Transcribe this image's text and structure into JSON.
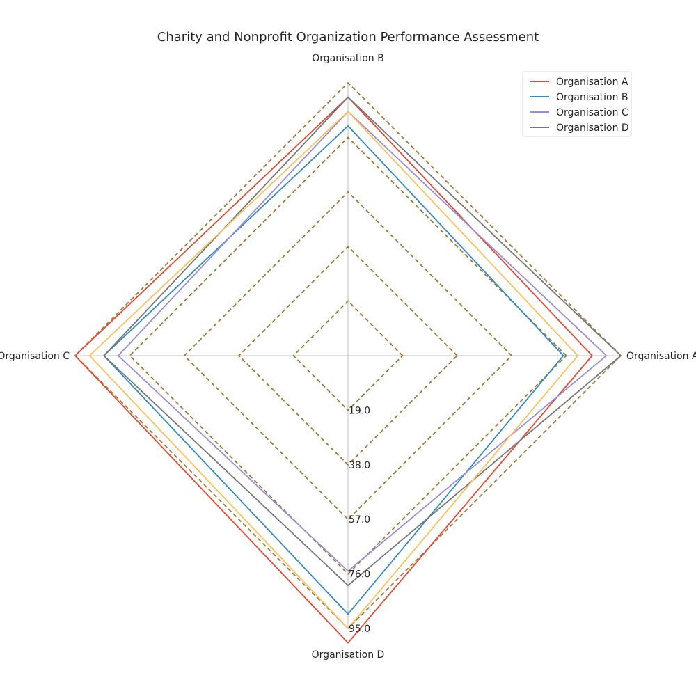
{
  "chart_data": {
    "type": "radar",
    "title": "Charity and Nonprofit Organization Performance Assessment",
    "axes": [
      "Organisation A",
      "Organisation B",
      "Organisation C",
      "Organisation D"
    ],
    "rticks": [
      19.0,
      38.0,
      57.0,
      76.0,
      95.0
    ],
    "rtick_labels": [
      "19.0",
      "38.0",
      "57.0",
      "76.0",
      "95.0"
    ],
    "rmax": 95,
    "series": [
      {
        "name": "Organisation A",
        "values": [
          85,
          90,
          95,
          100
        ],
        "color": "#E24A33",
        "in_legend": true
      },
      {
        "name": "Organisation B",
        "values": [
          75,
          80,
          85,
          90
        ],
        "color": "#348ABD",
        "in_legend": true
      },
      {
        "name": "Organisation C",
        "values": [
          90,
          85,
          80,
          75
        ],
        "color": "#988ED5",
        "in_legend": true
      },
      {
        "name": "Organisation D",
        "values": [
          95,
          90,
          85,
          80
        ],
        "color": "#777777",
        "in_legend": true
      },
      {
        "name": "",
        "values": [
          80,
          85,
          90,
          95
        ],
        "color": "#FBC15E",
        "in_legend": false
      }
    ],
    "gridline_color": "#9C7A3C",
    "gridline_style": "dashed",
    "axis_line_color": "#CCCCCC",
    "legend_position": "top-right"
  }
}
